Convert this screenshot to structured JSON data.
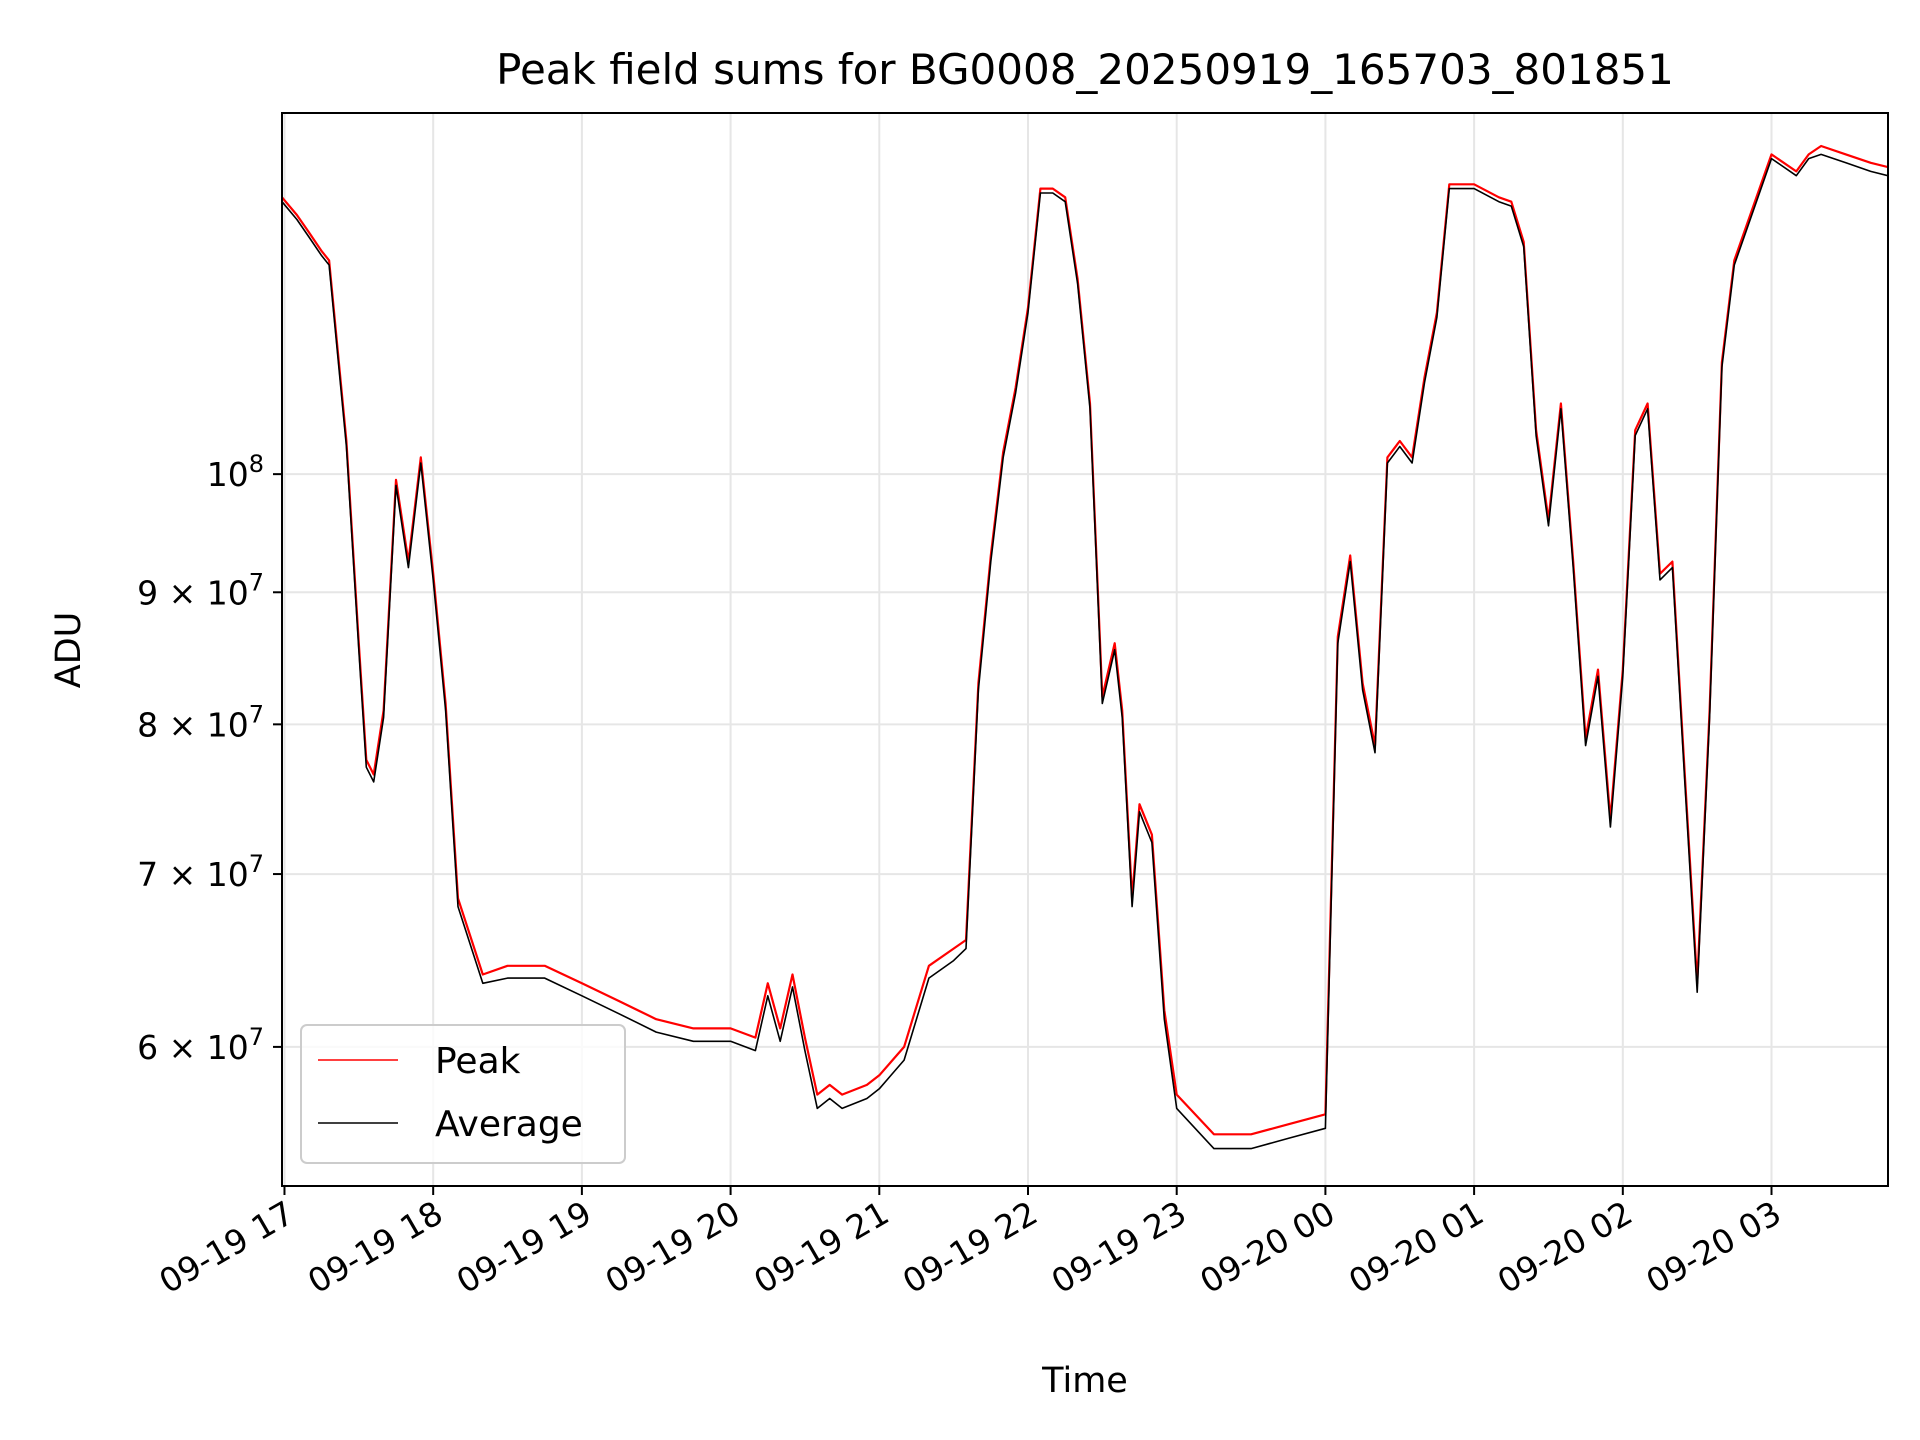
{
  "chart_data": {
    "type": "line",
    "title": "Peak field sums for BG0008_20250919_165703_801851",
    "xlabel": "Time",
    "ylabel": "ADU",
    "yscale": "log",
    "xlim": [
      "2025-09-19 16:59",
      "2025-09-20 03:47"
    ],
    "ylim": [
      53000000,
      138000000
    ],
    "grid": true,
    "legend_position": "lower-left",
    "x_ticks": [
      "2025-09-19 17:00",
      "2025-09-19 18:00",
      "2025-09-19 19:00",
      "2025-09-19 20:00",
      "2025-09-19 21:00",
      "2025-09-19 22:00",
      "2025-09-19 23:00",
      "2025-09-20 00:00",
      "2025-09-20 01:00",
      "2025-09-20 02:00",
      "2025-09-20 03:00"
    ],
    "x_tick_labels": [
      "09-19 17",
      "09-19 18",
      "09-19 19",
      "09-19 20",
      "09-19 21",
      "09-19 22",
      "09-19 23",
      "09-20 00",
      "09-20 01",
      "09-20 02",
      "09-20 03"
    ],
    "y_ticks": [
      {
        "value": 60000000,
        "mantissa": "6",
        "base": "10",
        "exp": "7"
      },
      {
        "value": 70000000,
        "mantissa": "7",
        "base": "10",
        "exp": "7"
      },
      {
        "value": 80000000,
        "mantissa": "8",
        "base": "10",
        "exp": "7"
      },
      {
        "value": 90000000,
        "mantissa": "9",
        "base": "10",
        "exp": "7"
      },
      {
        "value": 100000000,
        "mantissa": "",
        "base": "10",
        "exp": "8"
      }
    ],
    "series": [
      {
        "name": "Peak",
        "color": "#ff0000",
        "x": [
          "2025-09-19 16:59",
          "2025-09-19 17:05",
          "2025-09-19 17:10",
          "2025-09-19 17:15",
          "2025-09-19 17:18",
          "2025-09-19 17:25",
          "2025-09-19 17:30",
          "2025-09-19 17:33",
          "2025-09-19 17:36",
          "2025-09-19 17:40",
          "2025-09-19 17:45",
          "2025-09-19 17:50",
          "2025-09-19 17:55",
          "2025-09-19 18:00",
          "2025-09-19 18:05",
          "2025-09-19 18:10",
          "2025-09-19 18:20",
          "2025-09-19 18:30",
          "2025-09-19 18:45",
          "2025-09-19 19:00",
          "2025-09-19 19:15",
          "2025-09-19 19:30",
          "2025-09-19 19:45",
          "2025-09-19 20:00",
          "2025-09-19 20:10",
          "2025-09-19 20:15",
          "2025-09-19 20:20",
          "2025-09-19 20:25",
          "2025-09-19 20:30",
          "2025-09-19 20:35",
          "2025-09-19 20:40",
          "2025-09-19 20:45",
          "2025-09-19 20:55",
          "2025-09-19 21:00",
          "2025-09-19 21:10",
          "2025-09-19 21:20",
          "2025-09-19 21:30",
          "2025-09-19 21:35",
          "2025-09-19 21:40",
          "2025-09-19 21:45",
          "2025-09-19 21:50",
          "2025-09-19 21:55",
          "2025-09-19 22:00",
          "2025-09-19 22:05",
          "2025-09-19 22:10",
          "2025-09-19 22:15",
          "2025-09-19 22:20",
          "2025-09-19 22:25",
          "2025-09-19 22:30",
          "2025-09-19 22:35",
          "2025-09-19 22:38",
          "2025-09-19 22:42",
          "2025-09-19 22:45",
          "2025-09-19 22:50",
          "2025-09-19 22:55",
          "2025-09-19 23:00",
          "2025-09-19 23:15",
          "2025-09-19 23:30",
          "2025-09-19 23:45",
          "2025-09-20 00:00",
          "2025-09-20 00:05",
          "2025-09-20 00:10",
          "2025-09-20 00:15",
          "2025-09-20 00:20",
          "2025-09-20 00:25",
          "2025-09-20 00:30",
          "2025-09-20 00:35",
          "2025-09-20 00:40",
          "2025-09-20 00:45",
          "2025-09-20 00:50",
          "2025-09-20 01:00",
          "2025-09-20 01:10",
          "2025-09-20 01:15",
          "2025-09-20 01:20",
          "2025-09-20 01:25",
          "2025-09-20 01:30",
          "2025-09-20 01:35",
          "2025-09-20 01:40",
          "2025-09-20 01:45",
          "2025-09-20 01:50",
          "2025-09-20 01:55",
          "2025-09-20 02:00",
          "2025-09-20 02:05",
          "2025-09-20 02:10",
          "2025-09-20 02:15",
          "2025-09-20 02:20",
          "2025-09-20 02:25",
          "2025-09-20 02:30",
          "2025-09-20 02:35",
          "2025-09-20 02:40",
          "2025-09-20 02:45",
          "2025-09-20 03:00",
          "2025-09-20 03:10",
          "2025-09-20 03:15",
          "2025-09-20 03:20",
          "2025-09-20 03:30",
          "2025-09-20 03:40",
          "2025-09-20 03:47"
        ],
        "y": [
          128000000,
          126000000,
          124000000,
          122000000,
          121000000,
          103000000,
          86000000,
          77500000,
          76500000,
          81000000,
          99500000,
          92500000,
          101500000,
          91500000,
          81500000,
          68500000,
          64000000,
          64500000,
          64500000,
          63500000,
          62500000,
          61500000,
          61000000,
          61000000,
          60500000,
          63500000,
          61000000,
          64000000,
          60500000,
          57500000,
          58000000,
          57500000,
          58000000,
          58500000,
          60000000,
          64500000,
          65500000,
          66000000,
          83000000,
          93000000,
          102000000,
          108000000,
          116000000,
          129000000,
          129000000,
          128000000,
          119000000,
          106500000,
          82000000,
          86000000,
          81000000,
          68500000,
          74500000,
          72500000,
          62000000,
          57500000,
          55500000,
          55500000,
          56000000,
          56500000,
          86500000,
          93000000,
          83000000,
          78500000,
          101500000,
          103000000,
          101500000,
          109000000,
          115500000,
          129500000,
          129500000,
          128000000,
          127500000,
          123000000,
          104000000,
          96000000,
          106500000,
          92500000,
          79000000,
          84000000,
          73500000,
          84000000,
          104000000,
          106500000,
          91500000,
          92500000,
          76500000,
          63500000,
          81000000,
          110500000,
          121000000,
          133000000,
          131000000,
          133000000,
          134000000,
          133000000,
          132000000,
          131500000
        ]
      },
      {
        "name": "Average",
        "color": "#000000",
        "x": [
          "2025-09-19 16:59",
          "2025-09-19 17:05",
          "2025-09-19 17:10",
          "2025-09-19 17:15",
          "2025-09-19 17:18",
          "2025-09-19 17:25",
          "2025-09-19 17:30",
          "2025-09-19 17:33",
          "2025-09-19 17:36",
          "2025-09-19 17:40",
          "2025-09-19 17:45",
          "2025-09-19 17:50",
          "2025-09-19 17:55",
          "2025-09-19 18:00",
          "2025-09-19 18:05",
          "2025-09-19 18:10",
          "2025-09-19 18:20",
          "2025-09-19 18:30",
          "2025-09-19 18:45",
          "2025-09-19 19:00",
          "2025-09-19 19:15",
          "2025-09-19 19:30",
          "2025-09-19 19:45",
          "2025-09-19 20:00",
          "2025-09-19 20:10",
          "2025-09-19 20:15",
          "2025-09-19 20:20",
          "2025-09-19 20:25",
          "2025-09-19 20:30",
          "2025-09-19 20:35",
          "2025-09-19 20:40",
          "2025-09-19 20:45",
          "2025-09-19 20:55",
          "2025-09-19 21:00",
          "2025-09-19 21:10",
          "2025-09-19 21:20",
          "2025-09-19 21:30",
          "2025-09-19 21:35",
          "2025-09-19 21:40",
          "2025-09-19 21:45",
          "2025-09-19 21:50",
          "2025-09-19 21:55",
          "2025-09-19 22:00",
          "2025-09-19 22:05",
          "2025-09-19 22:10",
          "2025-09-19 22:15",
          "2025-09-19 22:20",
          "2025-09-19 22:25",
          "2025-09-19 22:30",
          "2025-09-19 22:35",
          "2025-09-19 22:38",
          "2025-09-19 22:42",
          "2025-09-19 22:45",
          "2025-09-19 22:50",
          "2025-09-19 22:55",
          "2025-09-19 23:00",
          "2025-09-19 23:15",
          "2025-09-19 23:30",
          "2025-09-19 23:45",
          "2025-09-20 00:00",
          "2025-09-20 00:05",
          "2025-09-20 00:10",
          "2025-09-20 00:15",
          "2025-09-20 00:20",
          "2025-09-20 00:25",
          "2025-09-20 00:30",
          "2025-09-20 00:35",
          "2025-09-20 00:40",
          "2025-09-20 00:45",
          "2025-09-20 00:50",
          "2025-09-20 01:00",
          "2025-09-20 01:10",
          "2025-09-20 01:15",
          "2025-09-20 01:20",
          "2025-09-20 01:25",
          "2025-09-20 01:30",
          "2025-09-20 01:35",
          "2025-09-20 01:40",
          "2025-09-20 01:45",
          "2025-09-20 01:50",
          "2025-09-20 01:55",
          "2025-09-20 02:00",
          "2025-09-20 02:05",
          "2025-09-20 02:10",
          "2025-09-20 02:15",
          "2025-09-20 02:20",
          "2025-09-20 02:25",
          "2025-09-20 02:30",
          "2025-09-20 02:35",
          "2025-09-20 02:40",
          "2025-09-20 02:45",
          "2025-09-20 03:00",
          "2025-09-20 03:10",
          "2025-09-20 03:15",
          "2025-09-20 03:20",
          "2025-09-20 03:30",
          "2025-09-20 03:40",
          "2025-09-20 03:47"
        ],
        "y": [
          127500000,
          125500000,
          123500000,
          121500000,
          120500000,
          102500000,
          85500000,
          77000000,
          76000000,
          80500000,
          99000000,
          92000000,
          101000000,
          91000000,
          81000000,
          68000000,
          63500000,
          63800000,
          63800000,
          62800000,
          61800000,
          60800000,
          60300000,
          60300000,
          59800000,
          62800000,
          60300000,
          63300000,
          59800000,
          56800000,
          57300000,
          56800000,
          57300000,
          57800000,
          59300000,
          63800000,
          64800000,
          65500000,
          82500000,
          92500000,
          101500000,
          107500000,
          115500000,
          128500000,
          128500000,
          127500000,
          118500000,
          106000000,
          81500000,
          85500000,
          80500000,
          68000000,
          74000000,
          72000000,
          61500000,
          56800000,
          54800000,
          54800000,
          55300000,
          55800000,
          86000000,
          92500000,
          82500000,
          78000000,
          101000000,
          102500000,
          101000000,
          108500000,
          115000000,
          129000000,
          129000000,
          127500000,
          127000000,
          122500000,
          103500000,
          95500000,
          106000000,
          92000000,
          78500000,
          83500000,
          73000000,
          83500000,
          103500000,
          106000000,
          91000000,
          92000000,
          76000000,
          63000000,
          80500000,
          110000000,
          120500000,
          132500000,
          130500000,
          132500000,
          133000000,
          132000000,
          131000000,
          130500000
        ]
      }
    ]
  }
}
